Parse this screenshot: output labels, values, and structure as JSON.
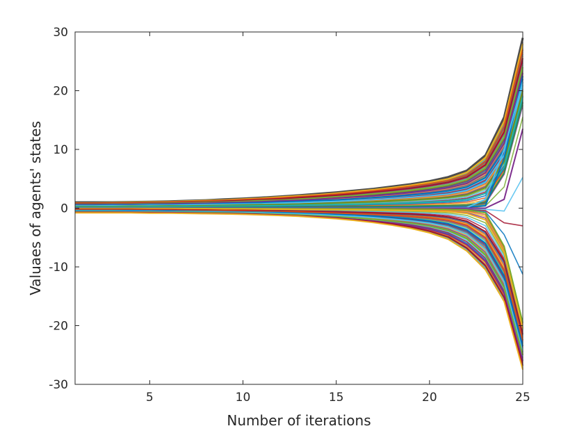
{
  "chart_data": {
    "type": "line",
    "title": "",
    "xlabel": "Number of iterations",
    "ylabel": "Valuaes of agents' states",
    "xlim": [
      1,
      25
    ],
    "ylim": [
      -30,
      30
    ],
    "xticks": [
      5,
      10,
      15,
      20,
      25
    ],
    "yticks": [
      -30,
      -20,
      -10,
      0,
      10,
      20,
      30
    ],
    "xtick_labels": [
      "5",
      "10",
      "15",
      "20",
      "25"
    ],
    "ytick_labels": [
      "-30",
      "-20",
      "-10",
      "0",
      "10",
      "20",
      "30"
    ],
    "grid": false,
    "legend": "none",
    "box": true,
    "x": [
      1,
      2,
      3,
      4,
      5,
      6,
      7,
      8,
      9,
      10,
      11,
      12,
      13,
      14,
      15,
      16,
      17,
      18,
      19,
      20,
      21,
      22,
      23,
      24,
      25
    ],
    "series": [
      {
        "color": "#4d4d4d",
        "values": [
          1.0,
          1.0,
          1.0,
          1.05,
          1.1,
          1.15,
          1.25,
          1.35,
          1.5,
          1.65,
          1.8,
          2.0,
          2.2,
          2.45,
          2.7,
          3.0,
          3.3,
          3.7,
          4.1,
          4.6,
          5.3,
          6.4,
          9.0,
          15.5,
          29.0
        ]
      },
      {
        "color": "#EDB120",
        "values": [
          0.9,
          0.9,
          0.95,
          1.0,
          1.05,
          1.1,
          1.2,
          1.3,
          1.4,
          1.55,
          1.7,
          1.9,
          2.1,
          2.3,
          2.55,
          2.85,
          3.15,
          3.5,
          3.9,
          4.4,
          5.0,
          6.1,
          8.6,
          14.8,
          28.0
        ]
      },
      {
        "color": "#D95319",
        "values": [
          0.85,
          0.85,
          0.9,
          0.9,
          0.95,
          1.0,
          1.1,
          1.2,
          1.3,
          1.45,
          1.6,
          1.75,
          1.95,
          2.15,
          2.4,
          2.65,
          2.95,
          3.3,
          3.7,
          4.15,
          4.7,
          5.7,
          8.0,
          14.0,
          27.0
        ]
      },
      {
        "color": "#A2142F",
        "values": [
          0.8,
          0.8,
          0.8,
          0.85,
          0.9,
          0.95,
          1.0,
          1.1,
          1.2,
          1.3,
          1.45,
          1.6,
          1.8,
          2.0,
          2.2,
          2.45,
          2.75,
          3.05,
          3.4,
          3.85,
          4.4,
          5.3,
          7.4,
          13.0,
          25.5
        ]
      },
      {
        "color": "#77AC30",
        "values": [
          0.7,
          0.7,
          0.75,
          0.75,
          0.8,
          0.85,
          0.9,
          1.0,
          1.05,
          1.15,
          1.3,
          1.4,
          1.55,
          1.75,
          1.95,
          2.15,
          2.4,
          2.7,
          3.0,
          3.4,
          3.9,
          4.8,
          6.8,
          12.0,
          24.0
        ]
      },
      {
        "color": "#7E2F8E",
        "values": [
          0.6,
          0.6,
          0.65,
          0.65,
          0.7,
          0.75,
          0.8,
          0.85,
          0.95,
          1.0,
          1.1,
          1.25,
          1.35,
          1.5,
          1.7,
          1.9,
          2.1,
          2.35,
          2.65,
          3.0,
          3.45,
          4.2,
          6.0,
          11.0,
          23.0
        ]
      },
      {
        "color": "#0072BD",
        "values": [
          0.5,
          0.5,
          0.55,
          0.55,
          0.6,
          0.6,
          0.65,
          0.7,
          0.8,
          0.85,
          0.95,
          1.05,
          1.15,
          1.3,
          1.4,
          1.6,
          1.8,
          2.0,
          2.25,
          2.55,
          2.95,
          3.6,
          5.2,
          10.0,
          22.0
        ]
      },
      {
        "color": "#4DBEEE",
        "values": [
          0.4,
          0.4,
          0.45,
          0.45,
          0.5,
          0.5,
          0.55,
          0.6,
          0.65,
          0.7,
          0.75,
          0.85,
          0.95,
          1.05,
          1.15,
          1.3,
          1.45,
          1.65,
          1.85,
          2.1,
          2.4,
          3.0,
          4.4,
          9.0,
          21.0
        ]
      },
      {
        "color": "#6b8e23",
        "values": [
          0.3,
          0.3,
          0.3,
          0.35,
          0.35,
          0.4,
          0.4,
          0.45,
          0.5,
          0.55,
          0.6,
          0.65,
          0.7,
          0.8,
          0.9,
          1.0,
          1.1,
          1.25,
          1.4,
          1.6,
          1.85,
          2.3,
          3.5,
          8.0,
          20.0
        ]
      },
      {
        "color": "#20b2aa",
        "values": [
          0.2,
          0.2,
          0.2,
          0.2,
          0.25,
          0.25,
          0.3,
          0.3,
          0.35,
          0.35,
          0.4,
          0.45,
          0.5,
          0.55,
          0.6,
          0.65,
          0.75,
          0.8,
          0.9,
          1.05,
          1.2,
          1.5,
          2.5,
          7.0,
          19.0
        ]
      },
      {
        "color": "#2E8B57",
        "values": [
          0.1,
          0.1,
          0.1,
          0.1,
          0.1,
          0.1,
          0.12,
          0.12,
          0.14,
          0.15,
          0.16,
          0.18,
          0.2,
          0.22,
          0.24,
          0.26,
          0.28,
          0.3,
          0.35,
          0.4,
          0.45,
          0.55,
          1.0,
          6.0,
          18.0
        ]
      },
      {
        "color": "#0072BD",
        "values": [
          0.05,
          0.05,
          0.05,
          0.05,
          0.05,
          0.05,
          0.05,
          0.05,
          0.06,
          0.06,
          0.06,
          0.07,
          0.07,
          0.08,
          0.08,
          0.09,
          0.1,
          0.1,
          0.12,
          0.13,
          0.15,
          0.2,
          0.4,
          8.5,
          22.5
        ]
      },
      {
        "color": "#4DBEEE",
        "values": [
          0.02,
          0.02,
          0.02,
          0.02,
          0.02,
          0.02,
          0.02,
          0.02,
          0.02,
          0.03,
          0.03,
          0.03,
          0.03,
          0.03,
          0.04,
          0.04,
          0.04,
          0.05,
          0.05,
          0.06,
          0.07,
          0.1,
          1.5,
          10.0,
          21.5
        ]
      },
      {
        "color": "#7E2F8E",
        "values": [
          0.0,
          0.0,
          0.0,
          0.0,
          0.0,
          0.0,
          0.0,
          0.0,
          0.0,
          0.0,
          0.0,
          0.0,
          0.0,
          0.0,
          0.0,
          0.0,
          0.0,
          0.0,
          0.0,
          0.0,
          0.0,
          0.0,
          0.0,
          1.5,
          13.5
        ]
      },
      {
        "color": "#77AC30",
        "values": [
          -0.05,
          -0.05,
          -0.05,
          -0.05,
          -0.05,
          -0.05,
          -0.05,
          -0.06,
          -0.06,
          -0.06,
          -0.07,
          -0.07,
          -0.08,
          -0.08,
          -0.09,
          -0.1,
          -0.1,
          -0.12,
          -0.13,
          -0.15,
          -0.2,
          -0.3,
          -0.8,
          -6.5,
          -19.5
        ]
      },
      {
        "color": "#EDB120",
        "values": [
          -0.1,
          -0.1,
          -0.1,
          -0.1,
          -0.1,
          -0.1,
          -0.12,
          -0.12,
          -0.14,
          -0.15,
          -0.16,
          -0.18,
          -0.2,
          -0.22,
          -0.24,
          -0.26,
          -0.3,
          -0.35,
          -0.4,
          -0.5,
          -0.6,
          -0.9,
          -2.0,
          -7.5,
          -20.5
        ]
      },
      {
        "color": "#A2142F",
        "values": [
          -0.2,
          -0.2,
          -0.2,
          -0.2,
          -0.25,
          -0.25,
          -0.3,
          -0.3,
          -0.35,
          -0.35,
          -0.4,
          -0.45,
          -0.5,
          -0.55,
          -0.6,
          -0.7,
          -0.8,
          -0.9,
          -1.0,
          -1.2,
          -1.5,
          -2.2,
          -4.0,
          -9.0,
          -21.5
        ]
      },
      {
        "color": "#D95319",
        "values": [
          -0.3,
          -0.3,
          -0.3,
          -0.3,
          -0.35,
          -0.35,
          -0.4,
          -0.4,
          -0.45,
          -0.5,
          -0.55,
          -0.6,
          -0.65,
          -0.75,
          -0.85,
          -0.95,
          -1.05,
          -1.2,
          -1.4,
          -1.65,
          -2.05,
          -2.9,
          -5.0,
          -10.5,
          -22.5
        ]
      },
      {
        "color": "#0072BD",
        "values": [
          -0.4,
          -0.4,
          -0.4,
          -0.4,
          -0.45,
          -0.45,
          -0.5,
          -0.55,
          -0.6,
          -0.65,
          -0.7,
          -0.75,
          -0.85,
          -0.95,
          -1.05,
          -1.2,
          -1.35,
          -1.55,
          -1.8,
          -2.15,
          -2.65,
          -3.7,
          -6.0,
          -11.5,
          -23.5
        ]
      },
      {
        "color": "#4DBEEE",
        "values": [
          -0.5,
          -0.5,
          -0.5,
          -0.55,
          -0.55,
          -0.6,
          -0.6,
          -0.65,
          -0.7,
          -0.75,
          -0.8,
          -0.9,
          -1.0,
          -1.1,
          -1.25,
          -1.4,
          -1.6,
          -1.85,
          -2.15,
          -2.55,
          -3.2,
          -4.4,
          -7.0,
          -12.5,
          -24.5
        ]
      },
      {
        "color": "#77AC30",
        "values": [
          -0.6,
          -0.6,
          -0.6,
          -0.65,
          -0.65,
          -0.7,
          -0.7,
          -0.75,
          -0.8,
          -0.85,
          -0.95,
          -1.05,
          -1.15,
          -1.3,
          -1.45,
          -1.65,
          -1.9,
          -2.2,
          -2.55,
          -3.05,
          -3.8,
          -5.2,
          -8.0,
          -13.5,
          -25.0
        ]
      },
      {
        "color": "#7E2F8E",
        "values": [
          -0.7,
          -0.7,
          -0.7,
          -0.7,
          -0.75,
          -0.75,
          -0.8,
          -0.85,
          -0.9,
          -0.95,
          -1.05,
          -1.15,
          -1.3,
          -1.45,
          -1.65,
          -1.9,
          -2.2,
          -2.55,
          -3.0,
          -3.6,
          -4.5,
          -6.2,
          -9.0,
          -14.5,
          -26.0
        ]
      },
      {
        "color": "#A2142F",
        "values": [
          -0.75,
          -0.75,
          -0.75,
          -0.75,
          -0.8,
          -0.8,
          -0.85,
          -0.9,
          -0.95,
          -1.0,
          -1.1,
          -1.2,
          -1.35,
          -1.5,
          -1.7,
          -2.0,
          -2.3,
          -2.7,
          -3.2,
          -3.9,
          -4.9,
          -6.8,
          -9.8,
          -15.2,
          -26.8
        ]
      },
      {
        "color": "#EDB120",
        "values": [
          -0.8,
          -0.8,
          -0.8,
          -0.8,
          -0.85,
          -0.85,
          -0.9,
          -0.95,
          -1.0,
          -1.05,
          -1.15,
          -1.25,
          -1.4,
          -1.6,
          -1.8,
          -2.1,
          -2.45,
          -2.9,
          -3.45,
          -4.2,
          -5.3,
          -7.3,
          -10.5,
          -15.9,
          -27.5
        ]
      }
    ]
  }
}
